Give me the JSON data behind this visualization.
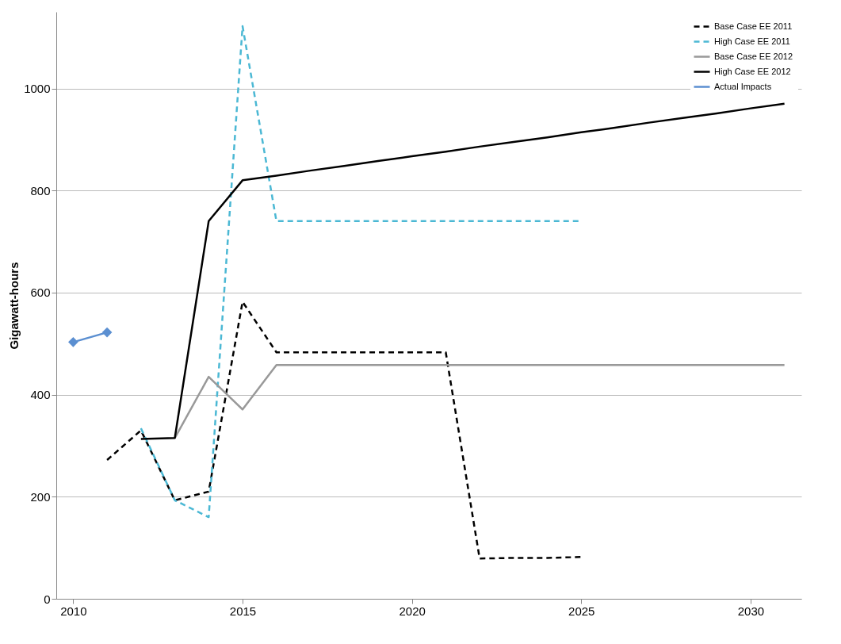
{
  "chart_data": {
    "type": "line",
    "ylabel": "Gigawatt-hours",
    "x": [
      2010,
      2011,
      2012,
      2013,
      2014,
      2015,
      2016,
      2017,
      2018,
      2019,
      2020,
      2021,
      2022,
      2023,
      2024,
      2025,
      2026,
      2027,
      2028,
      2029,
      2030,
      2031
    ],
    "xlim": [
      2009.5,
      2031.5
    ],
    "xticks": [
      2010,
      2015,
      2020,
      2025,
      2030
    ],
    "ylim": [
      0,
      1150
    ],
    "yticks": [
      0,
      200,
      400,
      600,
      800,
      1000
    ],
    "grid": "y",
    "legend": "top right",
    "marker": "none",
    "series": [
      {
        "name": "Base Case EE 2011",
        "color": "#000000",
        "line_style": "dashed",
        "values": [
          null,
          272,
          330,
          193,
          210,
          582,
          483,
          483,
          483,
          483,
          483,
          483,
          79,
          80,
          80,
          82,
          null,
          null,
          null,
          null,
          null,
          null
        ]
      },
      {
        "name": "High Case EE 2011",
        "color": "#4bb8d4",
        "line_style": "dashed",
        "values": [
          null,
          null,
          334,
          193,
          160,
          1122,
          740,
          740,
          740,
          740,
          740,
          740,
          740,
          740,
          740,
          740,
          null,
          null,
          null,
          null,
          null,
          null
        ]
      },
      {
        "name": "Base Case EE  2012",
        "color": "#999999",
        "line_style": "solid",
        "values": [
          null,
          null,
          null,
          315,
          435,
          371,
          458,
          458,
          458,
          458,
          458,
          458,
          458,
          458,
          458,
          458,
          458,
          458,
          458,
          458,
          458,
          458
        ]
      },
      {
        "name": "High Case EE 2012",
        "color": "#000000",
        "line_style": "solid",
        "values": [
          null,
          null,
          313,
          315,
          740,
          820,
          829,
          839,
          848,
          858,
          867,
          876,
          886,
          895,
          904,
          914,
          923,
          933,
          942,
          951,
          961,
          970
        ]
      },
      {
        "name": "Actual Impacts",
        "color": "#5b8fd1",
        "line_style": "solid",
        "marker": "diamond",
        "values": [
          503,
          522,
          null,
          null,
          null,
          null,
          null,
          null,
          null,
          null,
          null,
          null,
          null,
          null,
          null,
          null,
          null,
          null,
          null,
          null,
          null,
          null
        ]
      }
    ]
  }
}
